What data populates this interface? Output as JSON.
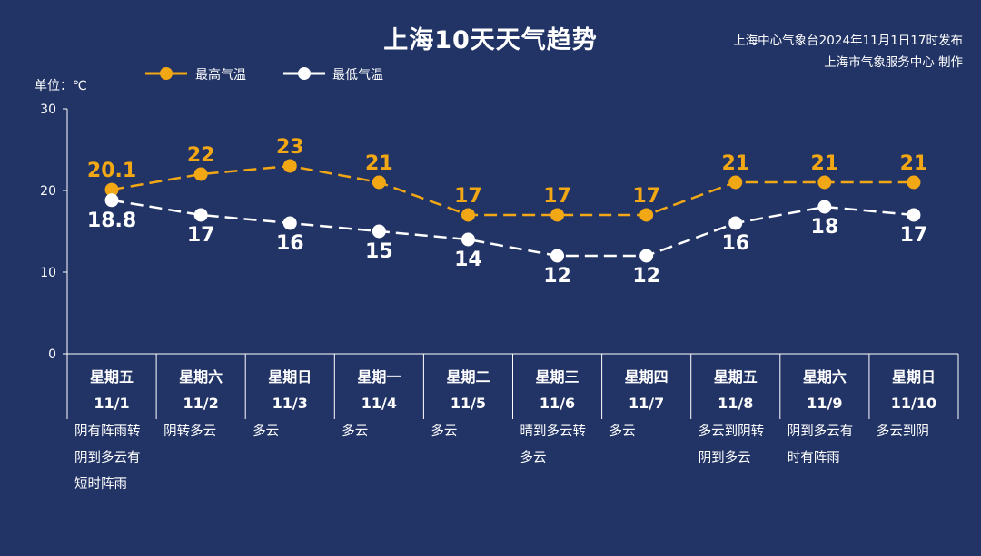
{
  "header": {
    "title": "上海10天天气趋势",
    "issuer_line1": "上海中心气象台2024年11月1日17时发布",
    "issuer_line2": "上海市气象服务中心 制作"
  },
  "unit_label": "单位：℃",
  "colors": {
    "background": "#223466",
    "high": "#F2A714",
    "low": "#FFFFFF",
    "axis": "#FFFFFF"
  },
  "chart_data": {
    "type": "line",
    "ylim": [
      0,
      30
    ],
    "yticks": [
      0,
      10,
      20,
      30
    ],
    "categories": [
      {
        "weekday": "星期五",
        "date": "11/1",
        "weather": [
          "阴有阵雨转",
          "阴到多云有",
          "短时阵雨"
        ]
      },
      {
        "weekday": "星期六",
        "date": "11/2",
        "weather": [
          "阴转多云"
        ]
      },
      {
        "weekday": "星期日",
        "date": "11/3",
        "weather": [
          "多云"
        ]
      },
      {
        "weekday": "星期一",
        "date": "11/4",
        "weather": [
          "多云"
        ]
      },
      {
        "weekday": "星期二",
        "date": "11/5",
        "weather": [
          "多云"
        ]
      },
      {
        "weekday": "星期三",
        "date": "11/6",
        "weather": [
          "晴到多云转",
          "多云"
        ]
      },
      {
        "weekday": "星期四",
        "date": "11/7",
        "weather": [
          "多云"
        ]
      },
      {
        "weekday": "星期五",
        "date": "11/8",
        "weather": [
          "多云到阴转",
          "阴到多云"
        ]
      },
      {
        "weekday": "星期六",
        "date": "11/9",
        "weather": [
          "阴到多云有",
          "时有阵雨"
        ]
      },
      {
        "weekday": "星期日",
        "date": "11/10",
        "weather": [
          "多云到阴"
        ]
      }
    ],
    "series": [
      {
        "name": "最高气温",
        "color": "#F2A714",
        "values": [
          20.1,
          22,
          23,
          21,
          17,
          17,
          17,
          21,
          21,
          21
        ],
        "labels": [
          "20.1",
          "22",
          "23",
          "21",
          "17",
          "17",
          "17",
          "21",
          "21",
          "21"
        ]
      },
      {
        "name": "最低气温",
        "color": "#FFFFFF",
        "values": [
          18.8,
          17,
          16,
          15,
          14,
          12,
          12,
          16,
          18,
          17
        ],
        "labels": [
          "18.8",
          "17",
          "16",
          "15",
          "14",
          "12",
          "12",
          "16",
          "18",
          "17"
        ]
      }
    ]
  }
}
